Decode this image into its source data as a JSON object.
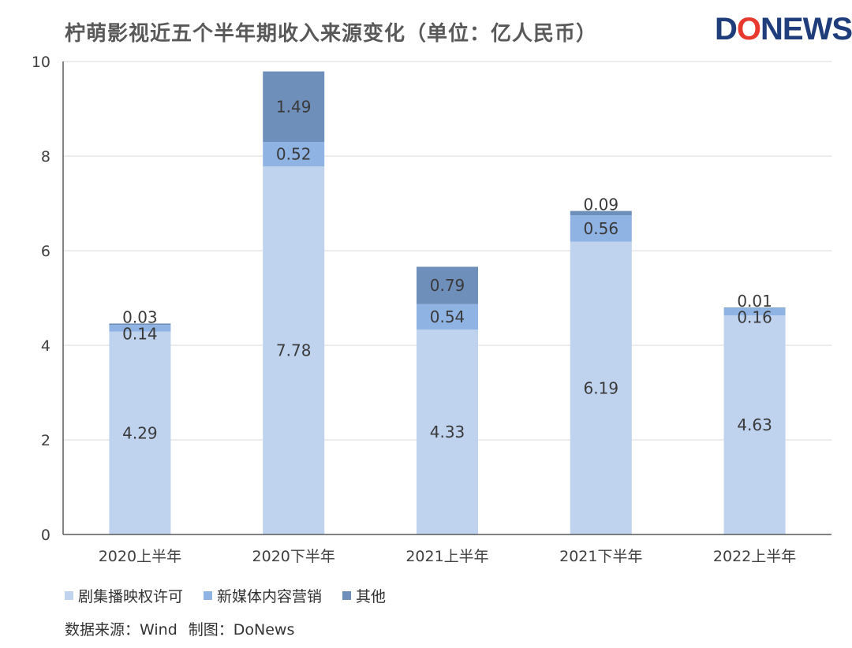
{
  "title": "柠萌影视近五个半年期收入来源变化（单位：亿人民币）",
  "logo": {
    "part1": "D",
    "part2": "O",
    "part3": "NEWS"
  },
  "source": {
    "data_source": "数据来源：Wind",
    "made_by": "制图：DoNews"
  },
  "colors": {
    "series1": "#bfd2ee",
    "series2": "#8fb3e2",
    "series3": "#6f8fbb"
  },
  "chart_data": {
    "type": "bar",
    "stacked": true,
    "categories": [
      "2020上半年",
      "2020下半年",
      "2021上半年",
      "2021下半年",
      "2022上半年"
    ],
    "series": [
      {
        "name": "剧集播映权许可",
        "values": [
          4.29,
          7.78,
          4.33,
          6.19,
          4.63
        ],
        "color": "#bfd2ee"
      },
      {
        "name": "新媒体内容营销",
        "values": [
          0.14,
          0.52,
          0.54,
          0.56,
          0.16
        ],
        "color": "#8fb3e2"
      },
      {
        "name": "其他",
        "values": [
          0.03,
          1.49,
          0.79,
          0.09,
          0.01
        ],
        "color": "#6f8fbb"
      }
    ],
    "ylim": [
      0,
      10
    ],
    "yticks": [
      "0",
      "2",
      "4",
      "6",
      "8",
      "10"
    ],
    "grid": true,
    "legend": "bottom-left",
    "xlabel": "",
    "ylabel": ""
  }
}
